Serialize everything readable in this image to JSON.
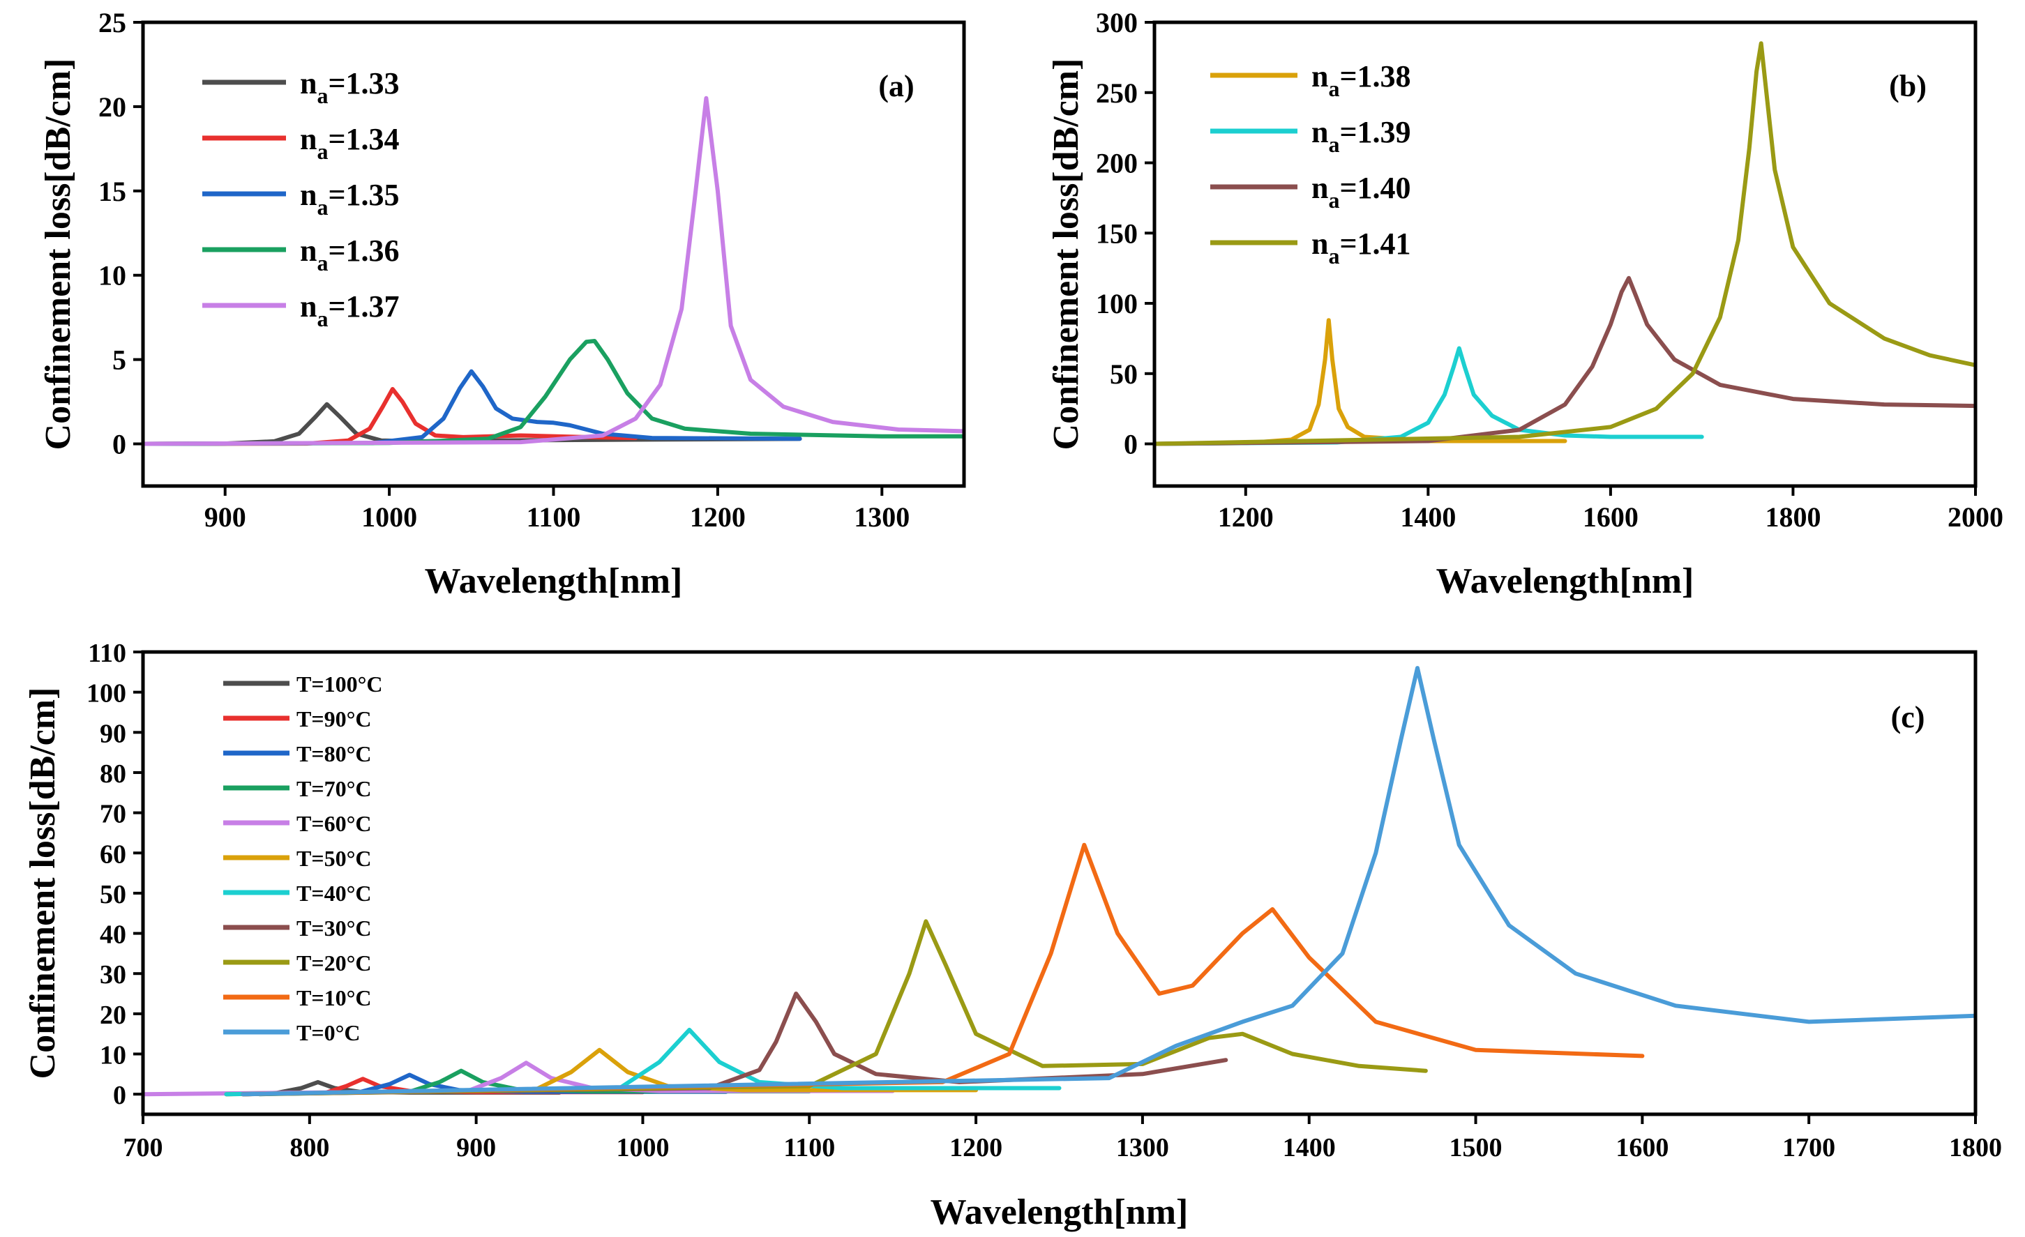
{
  "chart_data": [
    {
      "type": "line",
      "panel_label": "(a)",
      "xlabel": "Wavelength[nm]",
      "ylabel": "Confinement loss[dB/cm]",
      "xlim": [
        850,
        1350
      ],
      "ylim": [
        -2.5,
        25
      ],
      "xticks": [
        900,
        1000,
        1100,
        1200,
        1300
      ],
      "yticks": [
        0,
        5,
        10,
        15,
        20,
        25
      ],
      "legend": "top-left",
      "series": [
        {
          "name": "n",
          "sub": "a",
          "value": "=1.33",
          "color": "#4d4d4d",
          "x": [
            850,
            900,
            930,
            945,
            955,
            962,
            970,
            980,
            995,
            1020,
            1060,
            1150,
            1250
          ],
          "y": [
            0,
            0.02,
            0.15,
            0.6,
            1.6,
            2.35,
            1.6,
            0.6,
            0.2,
            0.15,
            0.2,
            0.25,
            0.3
          ]
        },
        {
          "name": "n",
          "sub": "a",
          "value": "=1.34",
          "color": "#e8302e",
          "x": [
            850,
            950,
            975,
            988,
            996,
            1002,
            1008,
            1016,
            1028,
            1045,
            1080,
            1120,
            1150
          ],
          "y": [
            0,
            0.02,
            0.2,
            0.9,
            2.2,
            3.25,
            2.5,
            1.2,
            0.5,
            0.4,
            0.5,
            0.4,
            0.35
          ]
        },
        {
          "name": "n",
          "sub": "a",
          "value": "=1.35",
          "color": "#1f66c8",
          "x": [
            850,
            990,
            1020,
            1033,
            1043,
            1050,
            1057,
            1065,
            1075,
            1090,
            1100,
            1110,
            1130,
            1160,
            1250
          ],
          "y": [
            0,
            0.05,
            0.4,
            1.5,
            3.3,
            4.3,
            3.4,
            2.1,
            1.5,
            1.3,
            1.25,
            1.1,
            0.6,
            0.35,
            0.3
          ]
        },
        {
          "name": "n",
          "sub": "a",
          "value": "=1.36",
          "color": "#1aa060",
          "x": [
            850,
            1000,
            1060,
            1080,
            1095,
            1110,
            1120,
            1125,
            1133,
            1145,
            1160,
            1180,
            1220,
            1300,
            1350
          ],
          "y": [
            0,
            0.05,
            0.3,
            1.0,
            2.8,
            5.0,
            6.05,
            6.1,
            5.0,
            3.0,
            1.5,
            0.9,
            0.6,
            0.45,
            0.45
          ]
        },
        {
          "name": "n",
          "sub": "a",
          "value": "=1.37",
          "color": "#c77fe6",
          "x": [
            850,
            1080,
            1130,
            1150,
            1165,
            1178,
            1186,
            1193,
            1200,
            1208,
            1220,
            1240,
            1270,
            1310,
            1350
          ],
          "y": [
            0,
            0.1,
            0.5,
            1.5,
            3.5,
            8.0,
            14.5,
            20.5,
            15.0,
            7.0,
            3.8,
            2.2,
            1.3,
            0.85,
            0.75
          ]
        }
      ]
    },
    {
      "type": "line",
      "panel_label": "(b)",
      "xlabel": "Wavelength[nm]",
      "ylabel": "Confinement loss[dB/cm]",
      "xlim": [
        1100,
        2000
      ],
      "ylim": [
        -30,
        300
      ],
      "xticks": [
        1200,
        1400,
        1600,
        1800,
        2000
      ],
      "yticks": [
        0,
        50,
        100,
        150,
        200,
        250,
        300
      ],
      "legend": "top-left",
      "series": [
        {
          "name": "n",
          "sub": "a",
          "value": "=1.38",
          "color": "#daa10a",
          "x": [
            1100,
            1200,
            1250,
            1270,
            1280,
            1287,
            1291,
            1295,
            1302,
            1312,
            1330,
            1400,
            1550
          ],
          "y": [
            0,
            0.5,
            3,
            10,
            28,
            60,
            88,
            60,
            25,
            12,
            5,
            2,
            2
          ]
        },
        {
          "name": "n",
          "sub": "a",
          "value": "=1.39",
          "color": "#1ccfd0",
          "x": [
            1100,
            1300,
            1370,
            1400,
            1418,
            1428,
            1434,
            1440,
            1450,
            1470,
            1500,
            1550,
            1600,
            1700
          ],
          "y": [
            0,
            1,
            5,
            15,
            35,
            55,
            68,
            55,
            35,
            20,
            10,
            6,
            5,
            5
          ]
        },
        {
          "name": "n",
          "sub": "a",
          "value": "=1.40",
          "color": "#8b4e4e",
          "x": [
            1100,
            1400,
            1500,
            1550,
            1580,
            1600,
            1612,
            1620,
            1628,
            1640,
            1670,
            1720,
            1800,
            1900,
            2000
          ],
          "y": [
            0,
            2,
            10,
            28,
            55,
            85,
            108,
            118,
            105,
            85,
            60,
            42,
            32,
            28,
            27
          ]
        },
        {
          "name": "n",
          "sub": "a",
          "value": "=1.41",
          "color": "#9a9a14",
          "x": [
            1100,
            1500,
            1600,
            1650,
            1690,
            1720,
            1740,
            1752,
            1760,
            1765,
            1770,
            1780,
            1800,
            1840,
            1900,
            1950,
            2000
          ],
          "y": [
            0,
            5,
            12,
            25,
            50,
            90,
            145,
            210,
            265,
            285,
            255,
            195,
            140,
            100,
            75,
            63,
            56
          ]
        }
      ]
    },
    {
      "type": "line",
      "panel_label": "(c)",
      "xlabel": "Wavelength[nm]",
      "ylabel": "Confinement loss[dB/cm]",
      "xlim": [
        700,
        1800
      ],
      "ylim": [
        -5,
        110
      ],
      "xticks": [
        700,
        800,
        900,
        1000,
        1100,
        1200,
        1300,
        1400,
        1500,
        1600,
        1700,
        1800
      ],
      "yticks": [
        0,
        10,
        20,
        30,
        40,
        50,
        60,
        70,
        80,
        90,
        100,
        110
      ],
      "legend": "top-left",
      "series": [
        {
          "name": "T=100°C",
          "color": "#4d4d4d",
          "x": [
            750,
            780,
            795,
            805,
            815,
            830,
            860,
            950
          ],
          "y": [
            0,
            0.3,
            1.5,
            3.0,
            1.5,
            0.6,
            0.4,
            0.4
          ]
        },
        {
          "name": "T=90°C",
          "color": "#e8302e",
          "x": [
            760,
            810,
            822,
            832,
            842,
            860,
            900,
            1000
          ],
          "y": [
            0,
            0.4,
            2.0,
            3.8,
            2.0,
            0.8,
            0.5,
            0.5
          ]
        },
        {
          "name": "T=80°C",
          "color": "#1f66c8",
          "x": [
            760,
            830,
            848,
            860,
            872,
            890,
            930,
            1050
          ],
          "y": [
            0,
            0.5,
            2.5,
            4.8,
            2.5,
            1.0,
            0.6,
            0.6
          ]
        },
        {
          "name": "T=70°C",
          "color": "#1aa060",
          "x": [
            770,
            860,
            878,
            891,
            904,
            925,
            970,
            1100
          ],
          "y": [
            0,
            0.6,
            3.0,
            5.8,
            3.0,
            1.2,
            0.7,
            0.7
          ]
        },
        {
          "name": "T=60°C",
          "color": "#c77fe6",
          "x": [
            700,
            895,
            915,
            930,
            945,
            970,
            1010,
            1150
          ],
          "y": [
            0,
            0.8,
            4.0,
            7.8,
            4.0,
            1.5,
            0.8,
            0.8
          ]
        },
        {
          "name": "T=50°C",
          "color": "#daa10a",
          "x": [
            750,
            935,
            957,
            974,
            991,
            1015,
            1060,
            1200
          ],
          "y": [
            0,
            1.0,
            5.5,
            11.0,
            5.5,
            2.0,
            1.0,
            1.0
          ]
        },
        {
          "name": "T=40°C",
          "color": "#1ccfd0",
          "x": [
            750,
            985,
            1010,
            1028,
            1046,
            1070,
            1120,
            1250
          ],
          "y": [
            0,
            1.2,
            8.0,
            16.0,
            8.0,
            3.0,
            1.5,
            1.5
          ]
        },
        {
          "name": "T=30°C",
          "color": "#8b4e4e",
          "x": [
            760,
            1040,
            1070,
            1080,
            1092,
            1104,
            1115,
            1140,
            1190,
            1300,
            1350
          ],
          "y": [
            0,
            1.5,
            6.0,
            13.0,
            25.0,
            18.0,
            10.0,
            5.0,
            3.0,
            5.0,
            8.5
          ]
        },
        {
          "name": "T=20°C",
          "color": "#9a9a14",
          "x": [
            760,
            1100,
            1140,
            1160,
            1170,
            1182,
            1200,
            1240,
            1300,
            1340,
            1360,
            1390,
            1430,
            1470
          ],
          "y": [
            0,
            2.0,
            10.0,
            30.0,
            43.0,
            32.0,
            15.0,
            7.0,
            7.5,
            14.0,
            15.0,
            10.0,
            7.0,
            5.8
          ]
        },
        {
          "name": "T=10°C",
          "color": "#f26a14",
          "x": [
            760,
            1180,
            1220,
            1245,
            1265,
            1285,
            1310,
            1330,
            1360,
            1378,
            1400,
            1440,
            1500,
            1600
          ],
          "y": [
            0,
            3.0,
            10.0,
            35.0,
            62.0,
            40.0,
            25.0,
            27.0,
            40.0,
            46.0,
            34.0,
            18.0,
            11.0,
            9.5
          ]
        },
        {
          "name": "T=0°C",
          "color": "#4a9cd8",
          "x": [
            760,
            1280,
            1320,
            1360,
            1390,
            1420,
            1440,
            1455,
            1465,
            1475,
            1490,
            1520,
            1560,
            1620,
            1700,
            1800
          ],
          "y": [
            0,
            4.0,
            12.0,
            18.0,
            22.0,
            35.0,
            60.0,
            88.0,
            106.0,
            88.0,
            62.0,
            42.0,
            30.0,
            22.0,
            18.0,
            19.5
          ]
        }
      ]
    }
  ]
}
